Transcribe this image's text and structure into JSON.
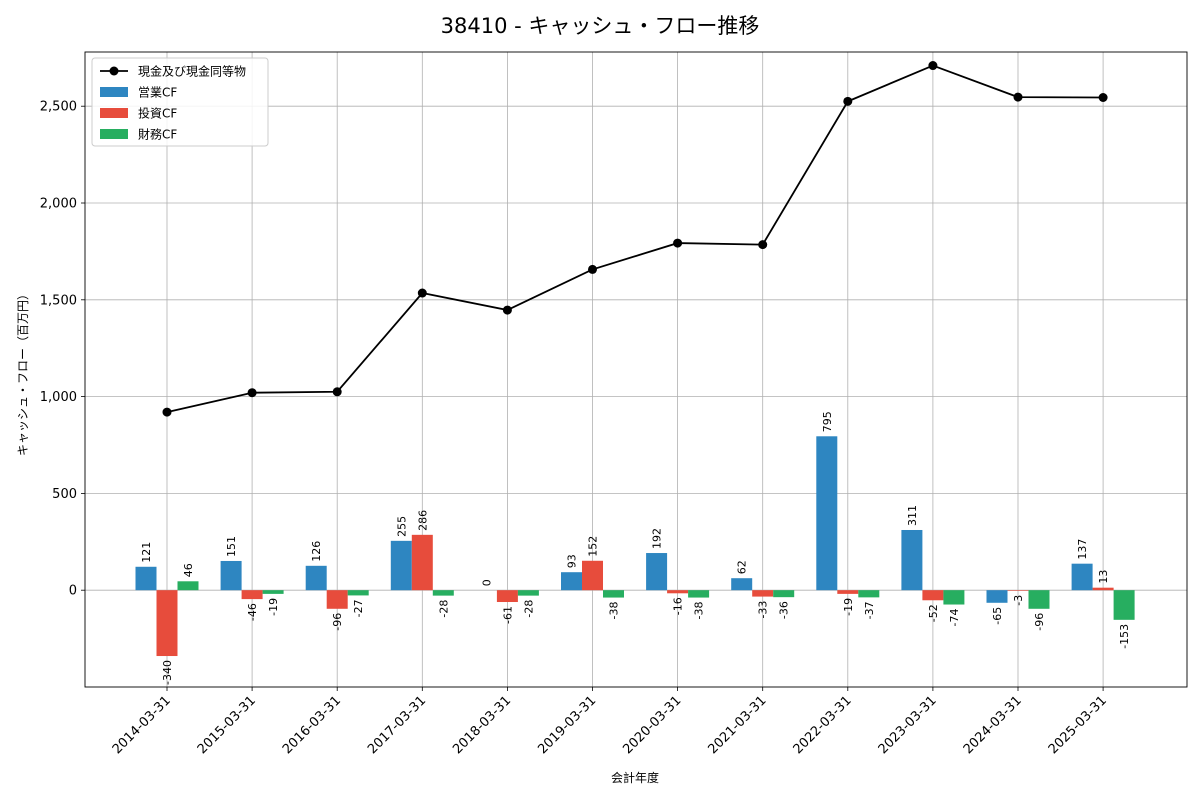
{
  "chart_data": {
    "type": "bar",
    "title": "38410 - キャッシュ・フロー推移",
    "xlabel": "会計年度",
    "ylabel": "キャッシュ・フロー（百万円）",
    "ylim": [
      -500,
      2780
    ],
    "yticks": [
      0,
      500,
      1000,
      1500,
      2000,
      2500
    ],
    "ytick_labels": [
      "0",
      "500",
      "1,000",
      "1,500",
      "2,000",
      "2,500"
    ],
    "grid": true,
    "legend_position": "top-left",
    "categories": [
      "2014-03-31",
      "2015-03-31",
      "2016-03-31",
      "2017-03-31",
      "2018-03-31",
      "2019-03-31",
      "2020-03-31",
      "2021-03-31",
      "2022-03-31",
      "2023-03-31",
      "2024-03-31",
      "2025-03-31"
    ],
    "series": [
      {
        "name": "営業CF",
        "kind": "bar",
        "color": "#2e86c1",
        "values": [
          121,
          151,
          126,
          255,
          0,
          93,
          192,
          62,
          795,
          311,
          -65,
          137
        ]
      },
      {
        "name": "投資CF",
        "kind": "bar",
        "color": "#e74c3c",
        "values": [
          -340,
          -46,
          -96,
          286,
          -61,
          152,
          -16,
          -33,
          -19,
          -52,
          -3,
          13
        ]
      },
      {
        "name": "財務CF",
        "kind": "bar",
        "color": "#27ae60",
        "values": [
          46,
          -19,
          -27,
          -28,
          -28,
          -38,
          -38,
          -36,
          -37,
          -74,
          -96,
          -153
        ]
      },
      {
        "name": "現金及び現金同等物",
        "kind": "line",
        "color": "#000000",
        "values": [
          920,
          1020,
          1025,
          1535,
          1447,
          1657,
          1793,
          1785,
          2525,
          2710,
          2547,
          2545
        ]
      }
    ],
    "legend_order": [
      "現金及び現金同等物",
      "営業CF",
      "投資CF",
      "財務CF"
    ]
  }
}
